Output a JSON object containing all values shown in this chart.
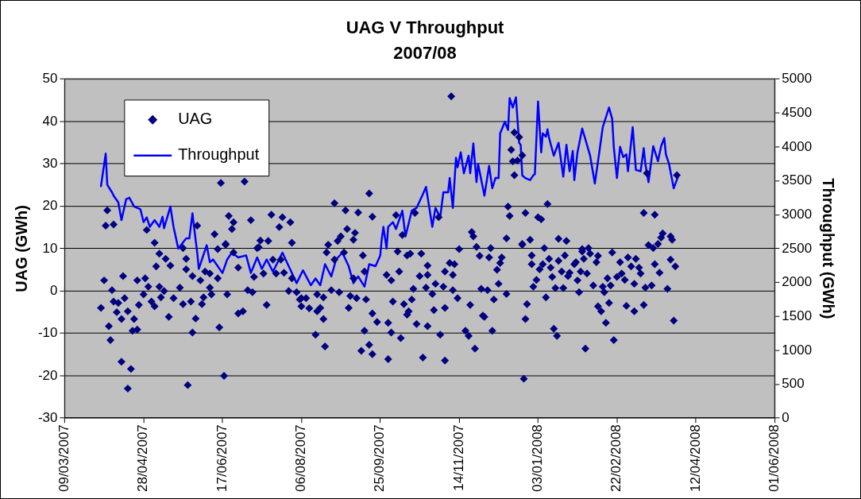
{
  "chart_data": {
    "type": "scatter",
    "title": "UAG V Throughput",
    "subtitle": "2007/08",
    "ylabel": "UAG (GWh)",
    "y2label": "Throughput (GWh)",
    "xlim": [
      "2007-03-09",
      "2008-06-01"
    ],
    "xticks": [
      {
        "value": "2007-03-09",
        "label": "09/03/2007"
      },
      {
        "value": "2007-04-28",
        "label": "28/04/2007"
      },
      {
        "value": "2007-06-17",
        "label": "17/06/2007"
      },
      {
        "value": "2007-08-06",
        "label": "06/08/2007"
      },
      {
        "value": "2007-09-25",
        "label": "25/09/2007"
      },
      {
        "value": "2007-11-14",
        "label": "14/11/2007"
      },
      {
        "value": "2008-01-03",
        "label": "03/01/2008"
      },
      {
        "value": "2008-02-22",
        "label": "22/02/2008"
      },
      {
        "value": "2008-04-12",
        "label": "12/04/2008"
      },
      {
        "value": "2008-06-01",
        "label": "01/06/2008"
      }
    ],
    "ylim": [
      -30,
      50
    ],
    "yticks": [
      -30,
      -20,
      -10,
      0,
      10,
      20,
      30,
      40,
      50
    ],
    "y2lim": [
      0,
      5000
    ],
    "y2ticks": [
      0,
      500,
      1000,
      1500,
      2000,
      2500,
      3000,
      3500,
      4000,
      4500,
      5000
    ],
    "grid": "y",
    "legend": "top left",
    "series": [
      {
        "name": "UAG",
        "type": "scatter",
        "marker": "diamond",
        "color": "#000080",
        "x": [
          "2007-04-01",
          "2007-04-03",
          "2007-04-04",
          "2007-04-05",
          "2007-04-06",
          "2007-04-07",
          "2007-04-08",
          "2007-04-09",
          "2007-04-09",
          "2007-04-11",
          "2007-04-12",
          "2007-04-14",
          "2007-04-14",
          "2007-04-15",
          "2007-04-16",
          "2007-04-18",
          "2007-04-18",
          "2007-04-20",
          "2007-04-21",
          "2007-04-22",
          "2007-04-24",
          "2007-04-24",
          "2007-04-25",
          "2007-04-28",
          "2007-04-29",
          "2007-04-30",
          "2007-05-01",
          "2007-05-03",
          "2007-05-05",
          "2007-05-05",
          "2007-05-06",
          "2007-05-08",
          "2007-05-08",
          "2007-05-09",
          "2007-05-11",
          "2007-05-12",
          "2007-05-14",
          "2007-05-15",
          "2007-05-17",
          "2007-05-21",
          "2007-05-23",
          "2007-05-23",
          "2007-05-25",
          "2007-05-25",
          "2007-05-26",
          "2007-05-28",
          "2007-05-29",
          "2007-05-29",
          "2007-05-31",
          "2007-06-01",
          "2007-06-03",
          "2007-06-04",
          "2007-06-05",
          "2007-06-06",
          "2007-06-09",
          "2007-06-09",
          "2007-06-10",
          "2007-06-12",
          "2007-06-14",
          "2007-06-14",
          "2007-06-15",
          "2007-06-16",
          "2007-06-18",
          "2007-06-19",
          "2007-06-19",
          "2007-06-20",
          "2007-06-21",
          "2007-06-23",
          "2007-06-24",
          "2007-06-24",
          "2007-06-27",
          "2007-06-27",
          "2007-06-30",
          "2007-07-01",
          "2007-07-03",
          "2007-07-05",
          "2007-07-06",
          "2007-07-07",
          "2007-07-09",
          "2007-07-10",
          "2007-07-11",
          "2007-07-13",
          "2007-07-15",
          "2007-07-16",
          "2007-07-18",
          "2007-07-19",
          "2007-07-21",
          "2007-07-23",
          "2007-07-24",
          "2007-07-25",
          "2007-07-26",
          "2007-07-29",
          "2007-07-30",
          "2007-07-31",
          "2007-07-31",
          "2007-08-03",
          "2007-08-05",
          "2007-08-06",
          "2007-08-06",
          "2007-08-09",
          "2007-08-11",
          "2007-08-15",
          "2007-08-16",
          "2007-08-16",
          "2007-08-18",
          "2007-08-20",
          "2007-08-20",
          "2007-08-21",
          "2007-08-22",
          "2007-08-23",
          "2007-08-25",
          "2007-08-27",
          "2007-08-27",
          "2007-08-29",
          "2007-08-30",
          "2007-08-31",
          "2007-09-02",
          "2007-09-03",
          "2007-09-04",
          "2007-09-05",
          "2007-09-06",
          "2007-09-08",
          "2007-09-08",
          "2007-09-09",
          "2007-09-10",
          "2007-09-11",
          "2007-09-13",
          "2007-09-14",
          "2007-09-15",
          "2007-09-15",
          "2007-09-16",
          "2007-09-18",
          "2007-09-18",
          "2007-09-20",
          "2007-09-20",
          "2007-09-20",
          "2007-09-23",
          "2007-09-29",
          "2007-09-30",
          "2007-09-30",
          "2007-10-02",
          "2007-10-02",
          "2007-10-03",
          "2007-10-05",
          "2007-10-06",
          "2007-10-07",
          "2007-10-08",
          "2007-10-09",
          "2007-10-10",
          "2007-10-12",
          "2007-10-12",
          "2007-10-13",
          "2007-10-14",
          "2007-10-15",
          "2007-10-16",
          "2007-10-17",
          "2007-10-18",
          "2007-10-20",
          "2007-10-21",
          "2007-10-22",
          "2007-10-24",
          "2007-10-25",
          "2007-10-25",
          "2007-10-25",
          "2007-10-28",
          "2007-10-29",
          "2007-10-30",
          "2007-11-01",
          "2007-11-02",
          "2007-11-04",
          "2007-11-05",
          "2007-11-05",
          "2007-11-05",
          "2007-11-08",
          "2007-11-09",
          "2007-11-10",
          "2007-11-10",
          "2007-11-11",
          "2007-11-13",
          "2007-11-14",
          "2007-11-18",
          "2007-11-20",
          "2007-11-21",
          "2007-11-22",
          "2007-11-23",
          "2007-11-24",
          "2007-11-25",
          "2007-11-27",
          "2007-11-28",
          "2007-11-29",
          "2007-11-30",
          "2007-12-02",
          "2007-12-03",
          "2007-12-04",
          "2007-12-05",
          "2007-12-06",
          "2007-12-08",
          "2007-12-09",
          "2007-12-10",
          "2007-12-11",
          "2007-12-14",
          "2007-12-14",
          "2007-12-15",
          "2007-12-16",
          "2007-12-17",
          "2007-12-18",
          "2007-12-19",
          "2007-12-19",
          "2007-12-21",
          "2007-12-22",
          "2007-12-24",
          "2007-12-24",
          "2007-12-24",
          "2007-12-25",
          "2007-12-26",
          "2007-12-26",
          "2007-12-27",
          "2007-12-29",
          "2007-12-30",
          "2007-12-30",
          "2007-12-31",
          "2008-01-02",
          "2008-01-03",
          "2008-01-04",
          "2008-01-05",
          "2008-01-06",
          "2008-01-07",
          "2008-01-08",
          "2008-01-09",
          "2008-01-10",
          "2008-01-11",
          "2008-01-12",
          "2008-01-13",
          "2008-01-14",
          "2008-01-15",
          "2008-01-16",
          "2008-01-16",
          "2008-01-18",
          "2008-01-19",
          "2008-01-20",
          "2008-01-21",
          "2008-01-22",
          "2008-01-23",
          "2008-01-26",
          "2008-01-27",
          "2008-01-28",
          "2008-01-29",
          "2008-01-30",
          "2008-01-31",
          "2008-01-31",
          "2008-02-01",
          "2008-02-02",
          "2008-02-03",
          "2008-02-04",
          "2008-02-05",
          "2008-02-07",
          "2008-02-09",
          "2008-02-10",
          "2008-02-10",
          "2008-02-12",
          "2008-02-13",
          "2008-02-14",
          "2008-02-15",
          "2008-02-16",
          "2008-02-17",
          "2008-02-18",
          "2008-02-19",
          "2008-02-20",
          "2008-02-22",
          "2008-02-24",
          "2008-02-25",
          "2008-02-27",
          "2008-02-28",
          "2008-02-29",
          "2008-03-02",
          "2008-03-04",
          "2008-03-04",
          "2008-03-05",
          "2008-03-07",
          "2008-03-08",
          "2008-03-10",
          "2008-03-10",
          "2008-03-11",
          "2008-03-12",
          "2008-03-13",
          "2008-03-15",
          "2008-03-16",
          "2008-03-17",
          "2008-03-17",
          "2008-03-19",
          "2008-03-20",
          "2008-03-21",
          "2008-03-22",
          "2008-03-25",
          "2008-03-27",
          "2008-03-27",
          "2008-03-28",
          "2008-03-29",
          "2008-03-30",
          "2008-03-31"
        ],
        "values": [
          -4.0,
          2.5,
          15.4,
          19.0,
          -8.3,
          -11.6,
          0.2,
          15.7,
          -2.5,
          -5.0,
          -2.8,
          -16.7,
          -6.6,
          3.5,
          -1.7,
          -23.0,
          -4.8,
          -18.4,
          -9.4,
          -6.6,
          -9.1,
          2.5,
          -3.3,
          -0.8,
          3.0,
          14.4,
          1.0,
          -2.5,
          -3.6,
          11.4,
          5.8,
          1.0,
          8.8,
          -1.5,
          0,
          7.6,
          -6.1,
          6.0,
          -1.7,
          0.8,
          -3.1,
          10.1,
          7.6,
          5.1,
          -22.2,
          -2.5,
          3.5,
          -9.8,
          -6.5,
          15.4,
          2.5,
          -3.1,
          -1.5,
          4.6,
          0.8,
          4.1,
          -0.8,
          13.4,
          3.0,
          9.9,
          -8.6,
          25.5,
          -20.0,
          10.9,
          11.1,
          -0.8,
          17.7,
          14.6,
          16.2,
          9.1,
          -5.3,
          5.5,
          -4.8,
          25.8,
          0.2,
          16.7,
          -0.3,
          3.3,
          10.1,
          10.3,
          11.9,
          4.1,
          -3.3,
          11.8,
          18.0,
          7.4,
          4.1,
          15.1,
          7.4,
          17.4,
          4.3,
          0,
          16.2,
          11.4,
          3.0,
          -0.3,
          -2.0,
          -3.6,
          -1.7,
          -1.7,
          -4.1,
          -10.3,
          -0.8,
          -4.8,
          -4.0,
          -1.5,
          -6.6,
          -13.1,
          9.1,
          10.9,
          0.2,
          7.4,
          20.7,
          11.8,
          -0.3,
          12.9,
          9.1,
          19.0,
          14.6,
          -4.0,
          -1.2,
          12.1,
          3.0,
          13.7,
          -1.7,
          18.5,
          -14.1,
          8.4,
          -9.4,
          4.6,
          -2.0,
          -12.7,
          23.0,
          -14.9,
          -5.3,
          17.5,
          -7.3,
          3.8,
          -7.5,
          -16.1,
          2.5,
          -9.8,
          -2.5,
          17.9,
          9.3,
          4.6,
          -11.1,
          13.2,
          -3.1,
          8.4,
          -5.6,
          -4.8,
          8.8,
          -2.0,
          0.5,
          18.4,
          -7.8,
          3.5,
          8.8,
          -15.7,
          0.8,
          6.0,
          3.8,
          -8.3,
          -0.7,
          -4.5,
          1.7,
          17.4,
          -10.3,
          1.0,
          4.6,
          -4.0,
          -16.4,
          6.6,
          45.9,
          0.2,
          3.8,
          6.3,
          -1.7,
          9.9,
          -9.4,
          -10.6,
          -3.3,
          13.9,
          12.9,
          -13.6,
          10.4,
          8.3,
          0.5,
          -5.8,
          -6.1,
          0.2,
          7.9,
          10.1,
          -9.4,
          -2.0,
          5.0,
          1.7,
          6.6,
          7.9,
          -0.7,
          12.4,
          19.9,
          17.7,
          33.3,
          30.6,
          27.3,
          37.4,
          30.8,
          36.3,
          32.0,
          10.9,
          11.1,
          -20.7,
          18.4,
          -6.6,
          -3.1,
          12.1,
          8.4,
          6.3,
          1.0,
          2.6,
          17.4,
          5.1,
          16.9,
          6.3,
          10.1,
          -1.5,
          20.5,
          7.6,
          5.5,
          3.3,
          -8.9,
          0.7,
          -10.6,
          12.3,
          7.1,
          4.6,
          0.7,
          8.4,
          11.8,
          3.5,
          4.3,
          6.3,
          6.8,
          2.5,
          -0.3,
          4.6,
          9.9,
          9.3,
          7.6,
          -13.6,
          4.1,
          10.1,
          8.8,
          1.3,
          6.8,
          -3.6,
          8.3,
          -4.8,
          1.0,
          -0.3,
          -7.5,
          3.0,
          -2.8,
          1.3,
          9.1,
          -11.6,
          3.3,
          6.8,
          4.1,
          2.6,
          -3.5,
          7.9,
          5.8,
          1.7,
          -4.8,
          7.6,
          5.5,
          4.1,
          18.4,
          -3.3,
          0.8,
          27.8,
          10.8,
          1.3,
          10.1,
          18.0,
          6.3,
          11.1,
          4.3,
          12.6,
          13.6,
          0.5,
          12.9,
          7.4,
          12.1,
          -7.0,
          5.8,
          27.3
        ]
      },
      {
        "name": "Throughput",
        "type": "line",
        "axis": "y2",
        "color": "#0000ff",
        "x": [
          "2007-04-01",
          "2007-04-04",
          "2007-04-05",
          "2007-04-08",
          "2007-04-09",
          "2007-04-12",
          "2007-04-14",
          "2007-04-17",
          "2007-04-19",
          "2007-04-22",
          "2007-04-26",
          "2007-04-28",
          "2007-04-30",
          "2007-05-02",
          "2007-05-05",
          "2007-05-08",
          "2007-05-10",
          "2007-05-11",
          "2007-05-15",
          "2007-05-17",
          "2007-05-20",
          "2007-05-25",
          "2007-05-27",
          "2007-05-29",
          "2007-05-30",
          "2007-06-01",
          "2007-06-02",
          "2007-06-04",
          "2007-06-07",
          "2007-06-09",
          "2007-06-11",
          "2007-06-14",
          "2007-06-17",
          "2007-06-20",
          "2007-06-23",
          "2007-06-27",
          "2007-07-02",
          "2007-07-05",
          "2007-07-09",
          "2007-07-12",
          "2007-07-15",
          "2007-07-19",
          "2007-07-22",
          "2007-07-25",
          "2007-07-29",
          "2007-08-03",
          "2007-08-07",
          "2007-08-12",
          "2007-08-15",
          "2007-08-18",
          "2007-08-21",
          "2007-08-25",
          "2007-08-28",
          "2007-09-01",
          "2007-09-05",
          "2007-09-08",
          "2007-09-11",
          "2007-09-15",
          "2007-09-18",
          "2007-09-22",
          "2007-09-25",
          "2007-09-26",
          "2007-09-27",
          "2007-09-29",
          "2007-09-30",
          "2007-10-03",
          "2007-10-05",
          "2007-10-09",
          "2007-10-11",
          "2007-10-15",
          "2007-10-18",
          "2007-10-22",
          "2007-10-24",
          "2007-10-28",
          "2007-10-30",
          "2007-11-02",
          "2007-11-04",
          "2007-11-07",
          "2007-11-08",
          "2007-11-10",
          "2007-11-12",
          "2007-11-13",
          "2007-11-15",
          "2007-11-17",
          "2007-11-20",
          "2007-11-21",
          "2007-11-23",
          "2007-11-25",
          "2007-11-26",
          "2007-11-30",
          "2007-12-03",
          "2007-12-05",
          "2007-12-07",
          "2007-12-09",
          "2007-12-10",
          "2007-12-13",
          "2007-12-15",
          "2007-12-16",
          "2007-12-18",
          "2007-12-20",
          "2007-12-22",
          "2007-12-23",
          "2007-12-24",
          "2007-12-26",
          "2007-12-29",
          "2007-12-31",
          "2008-01-01",
          "2008-01-03",
          "2008-01-05",
          "2008-01-06",
          "2008-01-08",
          "2008-01-09",
          "2008-01-10",
          "2008-01-13",
          "2008-01-16",
          "2008-01-19",
          "2008-01-21",
          "2008-01-23",
          "2008-01-25",
          "2008-01-26",
          "2008-01-28",
          "2008-01-31",
          "2008-02-02",
          "2008-02-05",
          "2008-02-08",
          "2008-02-11",
          "2008-02-13",
          "2008-02-17",
          "2008-02-19",
          "2008-02-20",
          "2008-02-22",
          "2008-02-24",
          "2008-02-26",
          "2008-02-28",
          "2008-02-29",
          "2008-03-03",
          "2008-03-05",
          "2008-03-08",
          "2008-03-10",
          "2008-03-11",
          "2008-03-13",
          "2008-03-16",
          "2008-03-19",
          "2008-03-21",
          "2008-03-23",
          "2008-03-24",
          "2008-03-26",
          "2008-03-28",
          "2008-03-29",
          "2008-04-01"
        ],
        "values": [
          3420,
          3900,
          3440,
          3330,
          3280,
          3180,
          2920,
          3230,
          3250,
          3120,
          3080,
          2890,
          2960,
          2820,
          2920,
          2820,
          2970,
          2800,
          3120,
          2820,
          2500,
          2650,
          2650,
          3020,
          2820,
          2440,
          2200,
          2340,
          2550,
          2300,
          2340,
          2240,
          2140,
          2340,
          2440,
          2370,
          2400,
          2140,
          2370,
          2200,
          2340,
          2160,
          2300,
          2440,
          2240,
          1990,
          2180,
          1960,
          2060,
          1960,
          2270,
          2090,
          2340,
          2440,
          2240,
          1990,
          2090,
          1940,
          2270,
          2240,
          2400,
          2650,
          2820,
          2500,
          2820,
          2890,
          2790,
          3060,
          2680,
          3060,
          3100,
          3300,
          3410,
          2820,
          3100,
          2960,
          3330,
          3330,
          3540,
          3100,
          3840,
          3700,
          3920,
          3610,
          3870,
          3610,
          4050,
          3480,
          3750,
          3280,
          3720,
          3390,
          3540,
          3540,
          4200,
          4370,
          4250,
          4720,
          4580,
          4730,
          4060,
          4030,
          3580,
          3540,
          3510,
          3580,
          3600,
          4670,
          3920,
          4200,
          4150,
          4260,
          4130,
          3870,
          4060,
          3560,
          4030,
          3640,
          3940,
          3510,
          3920,
          4270,
          4110,
          3870,
          3460,
          3950,
          4290,
          4580,
          4410,
          4000,
          3540,
          4000,
          3850,
          3890,
          3640,
          4290,
          3660,
          3640,
          3980,
          3750,
          3480,
          4010,
          3790,
          4010,
          4130,
          3890,
          3750,
          3510,
          3390,
          3580
        ]
      }
    ]
  }
}
